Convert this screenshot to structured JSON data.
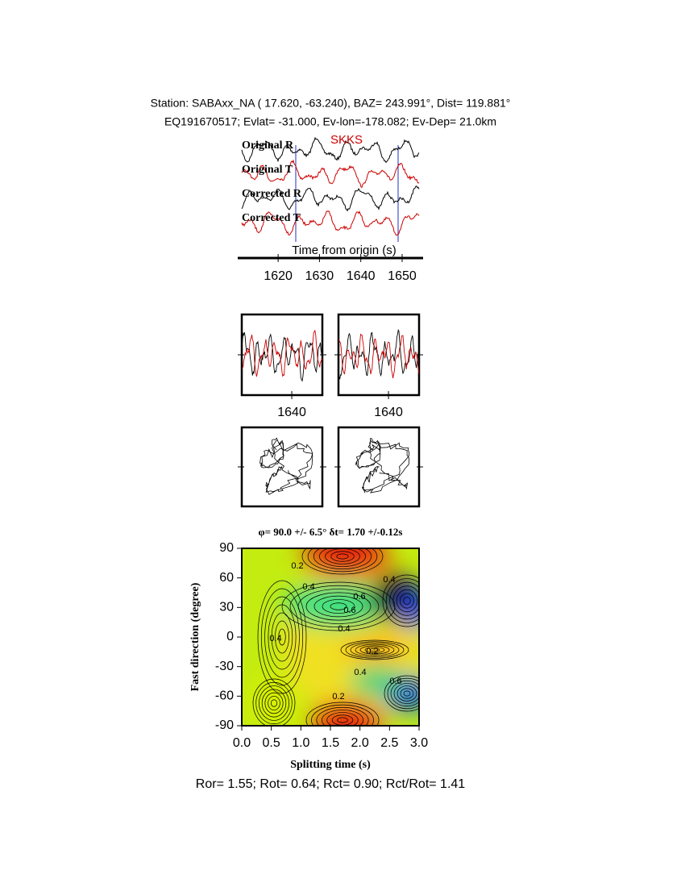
{
  "chart_data": [
    {
      "type": "waveform",
      "title": "Station: SABAxx_NA (  17.620,  -63.240), BAZ=  243.991°, Dist=  119.881°",
      "subtitle": "EQ191670517; Evlat= -31.000, Ev-lon=-178.082; Ev-Dep= 21.0km",
      "series": [
        {
          "name": "Original R",
          "color": "#000000"
        },
        {
          "name": "Original T",
          "color": "#cc0000"
        },
        {
          "name": "Corrected R",
          "color": "#000000"
        },
        {
          "name": "Corrected T",
          "color": "#cc0000"
        }
      ],
      "phase": "SKKS",
      "x_label": "Time from origin (s)",
      "xlim": [
        1611.2,
        1654.1
      ],
      "xticks": [
        1620,
        1630,
        1640,
        1650
      ]
    },
    {
      "type": "waveform-panels",
      "xlim": [
        1627.9,
        1647.4
      ],
      "xticks": [
        1640
      ]
    },
    {
      "type": "contour",
      "title": "φ= 90.0 +/- 6.5° δt= 1.70 +/-0.12s",
      "x_label": "Splitting time (s)",
      "y_label": "Fast direction (degree)",
      "xlim": [
        0,
        3
      ],
      "ylim": [
        -90,
        90
      ],
      "xticks": [
        {
          "value": 0,
          "label": "0.0"
        },
        {
          "value": 0.5,
          "label": "0.5"
        },
        {
          "value": 1,
          "label": "1.0"
        },
        {
          "value": 1.5,
          "label": "1.5"
        },
        {
          "value": 2,
          "label": "2.0"
        },
        {
          "value": 2.5,
          "label": "2.5"
        },
        {
          "value": 3,
          "label": "3.0"
        }
      ],
      "yticks": [
        90,
        60,
        30,
        0,
        -30,
        -60,
        -90
      ],
      "contour_labels": [
        0.2,
        0.4,
        0.4,
        0.6,
        0.6,
        0.4,
        0.4,
        0.2,
        0.4,
        0.6,
        0.2
      ],
      "footer": "Ror= 1.55; Rot= 0.64; Rct= 0.90; Rct/Rot= 1.41"
    }
  ]
}
